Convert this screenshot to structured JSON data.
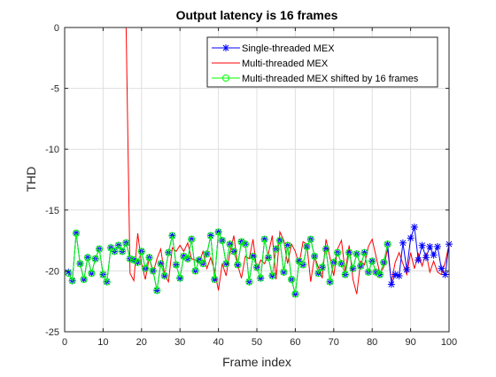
{
  "chart_data": {
    "type": "line",
    "title": "Output latency is 16 frames",
    "xlabel": "Frame index",
    "ylabel": "THD",
    "xlim": [
      0,
      100
    ],
    "ylim": [
      -25,
      0
    ],
    "xticks": [
      0,
      10,
      20,
      30,
      40,
      50,
      60,
      70,
      80,
      90,
      100
    ],
    "yticks": [
      0,
      -5,
      -10,
      -15,
      -20,
      -25
    ],
    "grid": true,
    "legend_position": "top-right",
    "series": [
      {
        "name": "Single-threaded MEX",
        "color": "#0000ff",
        "marker": "asterisk",
        "x": [
          1,
          2,
          3,
          4,
          5,
          6,
          7,
          8,
          9,
          10,
          11,
          12,
          13,
          14,
          15,
          16,
          17,
          18,
          19,
          20,
          21,
          22,
          23,
          24,
          25,
          26,
          27,
          28,
          29,
          30,
          31,
          32,
          33,
          34,
          35,
          36,
          37,
          38,
          39,
          40,
          41,
          42,
          43,
          44,
          45,
          46,
          47,
          48,
          49,
          50,
          51,
          52,
          53,
          54,
          55,
          56,
          57,
          58,
          59,
          60,
          61,
          62,
          63,
          64,
          65,
          66,
          67,
          68,
          69,
          70,
          71,
          72,
          73,
          74,
          75,
          76,
          77,
          78,
          79,
          80,
          81,
          82,
          83,
          84,
          85,
          86,
          87,
          88,
          89,
          90,
          91,
          92,
          93,
          94,
          95,
          96,
          97,
          98,
          99,
          100
        ],
        "y": [
          -20.1,
          -20.8,
          -16.9,
          -19.4,
          -20.7,
          -18.9,
          -20.2,
          -19.0,
          -18.2,
          -20.3,
          -20.9,
          -18.1,
          -18.4,
          -17.9,
          -18.4,
          -17.7,
          -19.0,
          -19.1,
          -19.3,
          -18.4,
          -19.8,
          -18.9,
          -20.0,
          -21.6,
          -19.4,
          -20.4,
          -18.5,
          -17.1,
          -19.5,
          -20.6,
          -18.8,
          -19.0,
          -17.4,
          -20.0,
          -19.1,
          -19.4,
          -18.6,
          -17.1,
          -20.7,
          -16.8,
          -17.5,
          -19.4,
          -17.8,
          -18.4,
          -19.5,
          -17.6,
          -17.8,
          -20.9,
          -18.8,
          -19.7,
          -20.6,
          -17.4,
          -18.9,
          -20.4,
          -18.2,
          -17.5,
          -20.1,
          -17.9,
          -20.7,
          -21.9,
          -19.2,
          -19.5,
          -18.0,
          -17.4,
          -18.8,
          -20.2,
          -19.7,
          -18.2,
          -20.9,
          -19.3,
          -18.5,
          -19.4,
          -20.3,
          -18.5,
          -19.8,
          -18.6,
          -19.6,
          -18.5,
          -20.1,
          -19.2,
          -20.1,
          -20.3,
          -19.3,
          -17.8,
          -21.1,
          -20.3,
          -20.4,
          -17.7,
          -19.9,
          -17.3,
          -16.4,
          -19.1,
          -17.9,
          -18.9,
          -18.0,
          -18.7,
          -18.0,
          -19.8,
          -20.3,
          -17.8
        ]
      },
      {
        "name": "Multi-threaded MEX",
        "color": "#ff0000",
        "marker": "none",
        "x": [
          1,
          2,
          3,
          4,
          5,
          6,
          7,
          8,
          9,
          10,
          11,
          12,
          13,
          14,
          15,
          16,
          17,
          18,
          19,
          20,
          21,
          22,
          23,
          24,
          25,
          26,
          27,
          28,
          29,
          30,
          31,
          32,
          33,
          34,
          35,
          36,
          37,
          38,
          39,
          40,
          41,
          42,
          43,
          44,
          45,
          46,
          47,
          48,
          49,
          50,
          51,
          52,
          53,
          54,
          55,
          56,
          57,
          58,
          59,
          60,
          61,
          62,
          63,
          64,
          65,
          66,
          67,
          68,
          69,
          70,
          71,
          72,
          73,
          74,
          75,
          76,
          77,
          78,
          79,
          80,
          81,
          82,
          83,
          84,
          85,
          86,
          87,
          88,
          89,
          90,
          91,
          92,
          93,
          94,
          95,
          96,
          97,
          98,
          99,
          100
        ],
        "y": [
          0,
          0,
          0,
          0,
          0,
          0,
          0,
          0,
          0,
          0,
          0,
          0,
          0,
          0,
          0,
          0,
          -20.2,
          -20.8,
          -16.9,
          -19.4,
          -20.7,
          -18.9,
          -20.2,
          -19.0,
          -18.2,
          -20.3,
          -20.9,
          -18.1,
          -18.4,
          -17.9,
          -18.4,
          -17.7,
          -19.0,
          -19.1,
          -19.3,
          -18.4,
          -19.8,
          -18.9,
          -20.0,
          -21.6,
          -19.4,
          -20.4,
          -18.5,
          -17.1,
          -19.5,
          -20.6,
          -18.8,
          -19.0,
          -17.4,
          -20.0,
          -19.1,
          -19.4,
          -18.6,
          -17.1,
          -20.7,
          -16.8,
          -17.5,
          -19.4,
          -17.8,
          -18.4,
          -19.5,
          -17.6,
          -17.8,
          -20.9,
          -18.8,
          -19.7,
          -20.6,
          -17.4,
          -18.9,
          -20.4,
          -18.2,
          -17.5,
          -20.1,
          -17.9,
          -20.7,
          -21.9,
          -19.2,
          -19.5,
          -18.0,
          -17.4,
          -18.8,
          -20.2,
          -19.7,
          -18.2,
          -20.9,
          -19.3,
          -18.5,
          -19.4,
          -20.3,
          -18.5,
          -19.8,
          -18.6,
          -19.6,
          -18.5,
          -20.1,
          -19.2,
          -20.1,
          -20.3,
          -19.3,
          -17.8
        ]
      },
      {
        "name": "Multi-threaded MEX shifted by 16 frames",
        "color": "#00ff00",
        "marker": "circle",
        "x": [
          1,
          2,
          3,
          4,
          5,
          6,
          7,
          8,
          9,
          10,
          11,
          12,
          13,
          14,
          15,
          16,
          17,
          18,
          19,
          20,
          21,
          22,
          23,
          24,
          25,
          26,
          27,
          28,
          29,
          30,
          31,
          32,
          33,
          34,
          35,
          36,
          37,
          38,
          39,
          40,
          41,
          42,
          43,
          44,
          45,
          46,
          47,
          48,
          49,
          50,
          51,
          52,
          53,
          54,
          55,
          56,
          57,
          58,
          59,
          60,
          61,
          62,
          63,
          64,
          65,
          66,
          67,
          68,
          69,
          70,
          71,
          72,
          73,
          74,
          75,
          76,
          77,
          78,
          79,
          80,
          81,
          82,
          83,
          84
        ],
        "y": [
          -20.2,
          -20.8,
          -16.9,
          -19.4,
          -20.7,
          -18.9,
          -20.2,
          -19.0,
          -18.2,
          -20.3,
          -20.9,
          -18.1,
          -18.4,
          -17.9,
          -18.4,
          -17.7,
          -19.0,
          -19.1,
          -19.3,
          -18.4,
          -19.8,
          -18.9,
          -20.0,
          -21.6,
          -19.4,
          -20.4,
          -18.5,
          -17.1,
          -19.5,
          -20.6,
          -18.8,
          -19.0,
          -17.4,
          -20.0,
          -19.1,
          -19.4,
          -18.6,
          -17.1,
          -20.7,
          -16.8,
          -17.5,
          -19.4,
          -17.8,
          -18.4,
          -19.5,
          -17.6,
          -17.8,
          -20.9,
          -18.8,
          -19.7,
          -20.6,
          -17.4,
          -18.9,
          -20.4,
          -18.2,
          -17.5,
          -20.1,
          -17.9,
          -20.7,
          -21.9,
          -19.2,
          -19.5,
          -18.0,
          -17.4,
          -18.8,
          -20.2,
          -19.7,
          -18.2,
          -20.9,
          -19.3,
          -18.5,
          -19.4,
          -20.3,
          -18.5,
          -19.8,
          -18.6,
          -19.6,
          -18.5,
          -20.1,
          -19.2,
          -20.1,
          -20.3,
          -19.3,
          -17.8
        ]
      }
    ]
  }
}
